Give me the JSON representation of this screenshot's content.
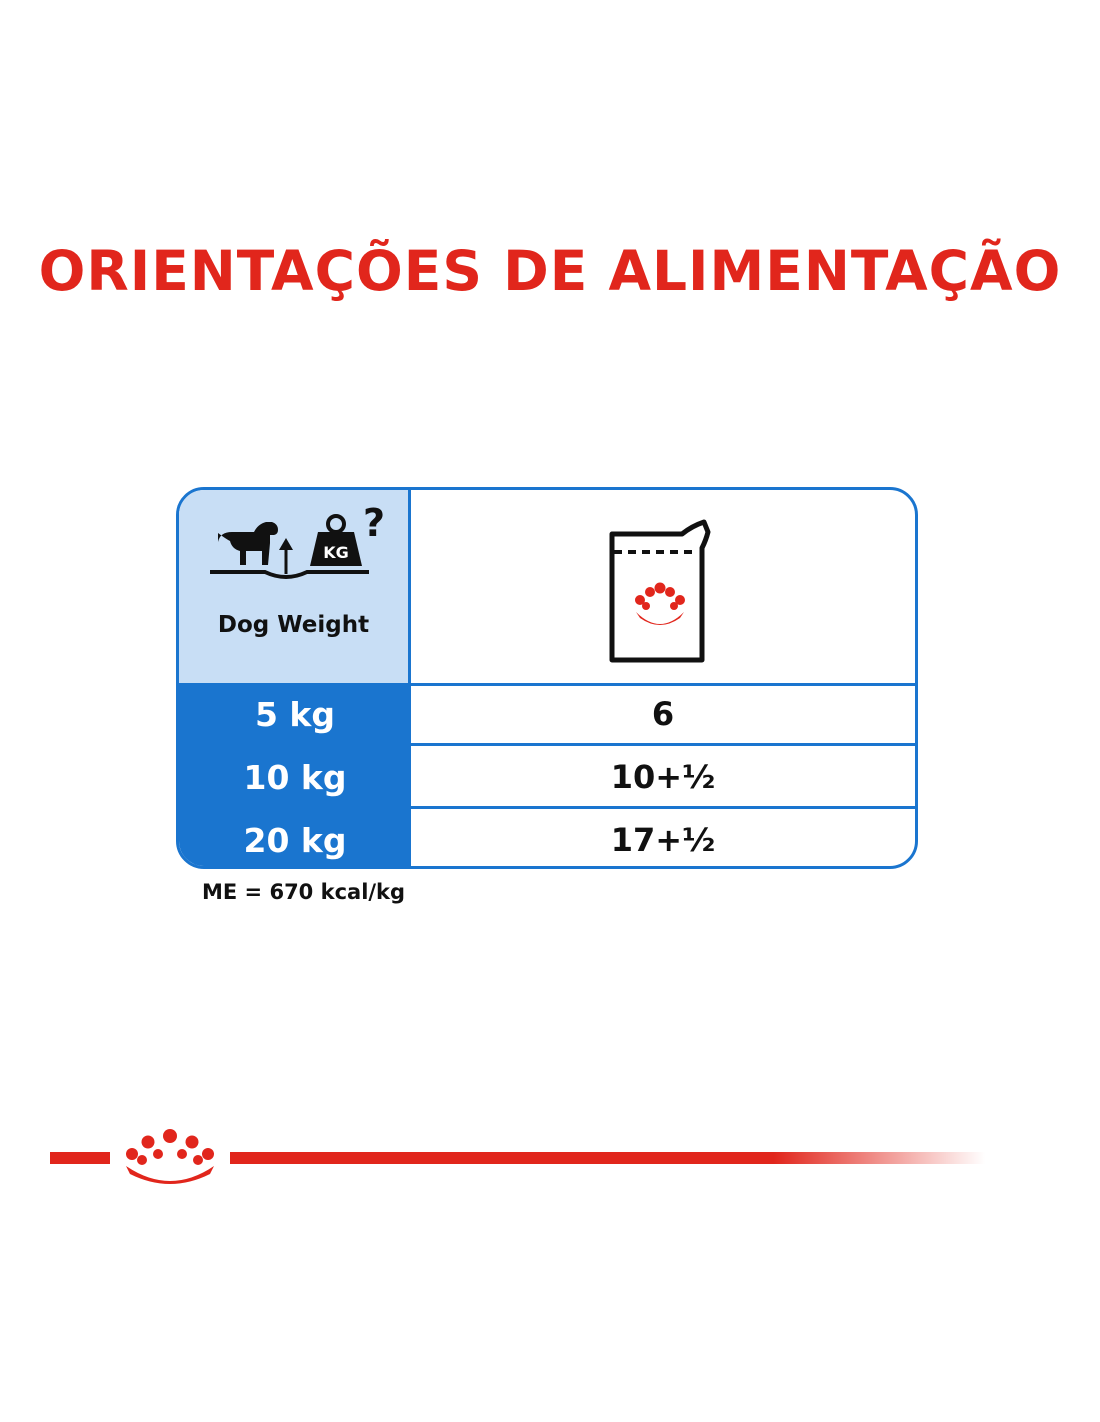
{
  "title": "ORIENTAÇÕES DE ALIMENTAÇÃO",
  "table": {
    "header_weight_label": "Dog Weight",
    "header_weight_icon": "dog-on-scale-icon",
    "header_pouch_icon": "wet-food-pouch-icon",
    "rows": [
      {
        "weight": "5 kg",
        "pouches": "6"
      },
      {
        "weight": "10 kg",
        "pouches": "10+½"
      },
      {
        "weight": "20 kg",
        "pouches": "17+½"
      }
    ]
  },
  "note": "ME = 670 kcal/kg",
  "footer_icon": "royal-canin-crown-icon",
  "colors": {
    "brand_red": "#e1261c",
    "table_blue": "#1a75cf",
    "header_light_blue": "#c8def5"
  }
}
